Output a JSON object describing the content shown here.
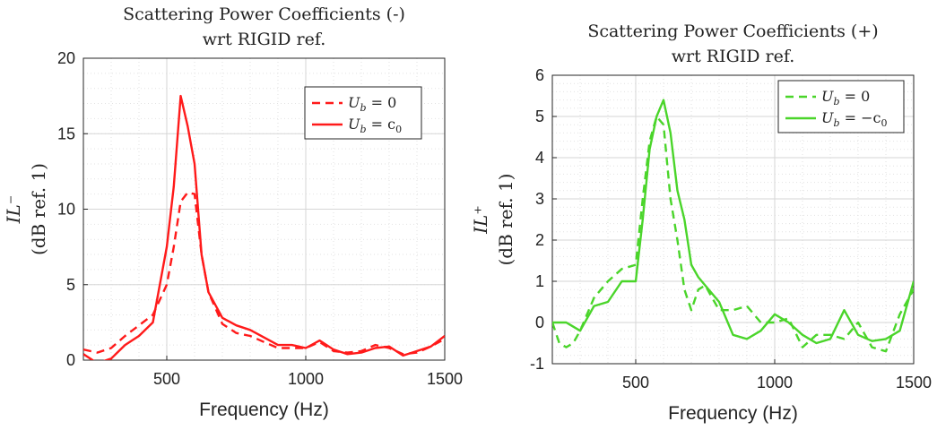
{
  "chart_data": [
    {
      "type": "line",
      "title": [
        "Scattering Power Coefficients (-)",
        "wrt RIGID ref."
      ],
      "xlabel": "Frequency (Hz)",
      "ylabel": [
        "IL⁻",
        "(dB ref. 1)"
      ],
      "xlim": [
        200,
        1500
      ],
      "ylim": [
        0,
        20
      ],
      "xticks": [
        500,
        1000,
        1500
      ],
      "yticks": [
        0,
        5,
        10,
        15,
        20
      ],
      "grid": true,
      "legend_position": "top-right",
      "series": [
        {
          "name": "U_b = 0",
          "style": "dashed",
          "color": "#ff1a1a",
          "x": [
            200,
            250,
            300,
            350,
            400,
            450,
            500,
            525,
            550,
            575,
            600,
            625,
            650,
            700,
            750,
            800,
            850,
            900,
            950,
            1000,
            1050,
            1100,
            1150,
            1200,
            1250,
            1300,
            1350,
            1400,
            1450,
            1500
          ],
          "y": [
            0.7,
            0.5,
            0.8,
            1.6,
            2.3,
            3.0,
            5.0,
            7.5,
            10.5,
            11.1,
            11.0,
            7.0,
            4.5,
            2.4,
            1.8,
            1.6,
            1.2,
            0.8,
            0.8,
            0.8,
            1.2,
            0.6,
            0.5,
            0.6,
            1.0,
            0.8,
            0.4,
            0.5,
            0.9,
            1.4
          ]
        },
        {
          "name": "U_b = c_0",
          "style": "solid",
          "color": "#ff1a1a",
          "x": [
            200,
            250,
            300,
            350,
            400,
            450,
            500,
            525,
            550,
            575,
            600,
            625,
            650,
            700,
            750,
            800,
            850,
            900,
            950,
            1000,
            1050,
            1100,
            1150,
            1200,
            1250,
            1300,
            1350,
            1400,
            1450,
            1500
          ],
          "y": [
            0.4,
            -0.2,
            0.1,
            1.0,
            1.6,
            2.5,
            7.5,
            11.5,
            17.5,
            15.5,
            13.0,
            7.0,
            4.5,
            2.8,
            2.3,
            2.0,
            1.5,
            1.0,
            1.0,
            0.8,
            1.3,
            0.7,
            0.4,
            0.5,
            0.8,
            0.9,
            0.3,
            0.6,
            0.9,
            1.6
          ]
        }
      ]
    },
    {
      "type": "line",
      "title": [
        "Scattering Power Coefficients (+)",
        "wrt RIGID ref."
      ],
      "xlabel": "Frequency (Hz)",
      "ylabel": [
        "IL⁺",
        "(dB ref. 1)"
      ],
      "xlim": [
        200,
        1500
      ],
      "ylim": [
        -1,
        6
      ],
      "xticks": [
        500,
        1000,
        1500
      ],
      "yticks": [
        -1,
        0,
        1,
        2,
        3,
        4,
        5,
        6
      ],
      "grid": true,
      "legend_position": "top-right",
      "series": [
        {
          "name": "U_b = 0",
          "style": "dashed",
          "color": "#4ad52a",
          "x": [
            200,
            225,
            250,
            275,
            300,
            350,
            400,
            450,
            500,
            525,
            550,
            575,
            600,
            625,
            650,
            675,
            700,
            725,
            750,
            800,
            850,
            900,
            950,
            1000,
            1050,
            1100,
            1150,
            1200,
            1250,
            1300,
            1350,
            1400,
            1450,
            1500
          ],
          "y": [
            0.0,
            -0.5,
            -0.6,
            -0.5,
            -0.2,
            0.6,
            1.0,
            1.3,
            1.4,
            3.0,
            4.4,
            5.0,
            4.8,
            3.0,
            2.0,
            0.8,
            0.3,
            0.8,
            0.9,
            0.3,
            0.3,
            0.4,
            0.0,
            0.0,
            0.1,
            -0.6,
            -0.3,
            -0.3,
            -0.4,
            0.0,
            -0.6,
            -0.7,
            0.2,
            0.8
          ]
        },
        {
          "name": "U_b = -c_0",
          "style": "solid",
          "color": "#4ad52a",
          "x": [
            200,
            250,
            300,
            350,
            400,
            450,
            500,
            525,
            550,
            575,
            600,
            625,
            650,
            675,
            700,
            725,
            750,
            800,
            850,
            900,
            950,
            1000,
            1050,
            1100,
            1150,
            1200,
            1250,
            1300,
            1350,
            1400,
            1450,
            1500
          ],
          "y": [
            0.0,
            0.0,
            -0.2,
            0.4,
            0.5,
            1.0,
            1.0,
            2.5,
            4.2,
            5.0,
            5.4,
            4.6,
            3.2,
            2.5,
            1.4,
            1.1,
            0.9,
            0.5,
            -0.3,
            -0.4,
            -0.2,
            0.2,
            0.0,
            -0.3,
            -0.5,
            -0.4,
            0.3,
            -0.3,
            -0.45,
            -0.4,
            -0.2,
            1.0
          ]
        }
      ]
    }
  ]
}
